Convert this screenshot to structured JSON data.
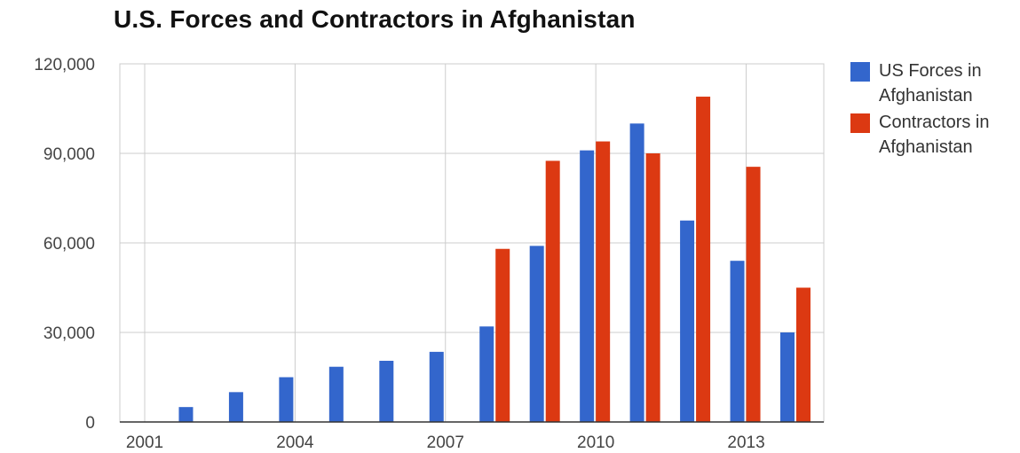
{
  "chart_data": {
    "type": "bar",
    "title": "U.S. Forces and Contractors in Afghanistan",
    "xlabel": "",
    "ylabel": "",
    "x": [
      2001,
      2002,
      2003,
      2004,
      2005,
      2006,
      2007,
      2008,
      2009,
      2010,
      2011,
      2012,
      2013,
      2014
    ],
    "xlim": [
      2001,
      2014
    ],
    "x_ticks": [
      "2001",
      "2004",
      "2007",
      "2010",
      "2013"
    ],
    "ylim": [
      0,
      120000
    ],
    "y_ticks": [
      "0",
      "30,000",
      "60,000",
      "90,000",
      "120,000"
    ],
    "grid": true,
    "legend_position": "right",
    "series": [
      {
        "name": "US Forces in Afghanistan",
        "color": "#3366cc",
        "values": [
          null,
          5000,
          10000,
          15000,
          18500,
          20500,
          23500,
          32000,
          59000,
          91000,
          100000,
          67500,
          54000,
          30000
        ]
      },
      {
        "name": "Contractors in Afghanistan",
        "color": "#dc3912",
        "values": [
          null,
          null,
          null,
          null,
          null,
          null,
          null,
          58000,
          87500,
          94000,
          90000,
          109000,
          85500,
          45000
        ]
      }
    ]
  }
}
